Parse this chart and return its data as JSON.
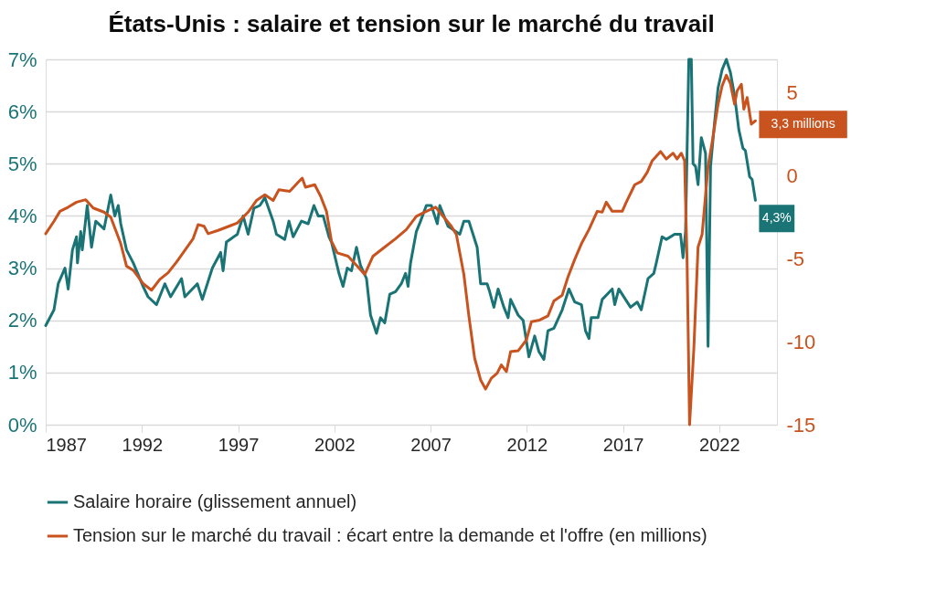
{
  "chart_data": {
    "type": "line",
    "title": "États-Unis : salaire et tension sur le marché du travail",
    "xlim": [
      1987,
      2025
    ],
    "xticks": [
      1987,
      1992,
      1997,
      2002,
      2007,
      2012,
      2017,
      2022
    ],
    "ylim": [
      0,
      7
    ],
    "yticks": [
      {
        "value": 0,
        "label": "0%"
      },
      {
        "value": 1,
        "label": "1%"
      },
      {
        "value": 2,
        "label": "2%"
      },
      {
        "value": 3,
        "label": "3%"
      },
      {
        "value": 4,
        "label": "4%"
      },
      {
        "value": 5,
        "label": "5%"
      },
      {
        "value": 6,
        "label": "6%"
      },
      {
        "value": 7,
        "label": "7%"
      }
    ],
    "y2lim": [
      -15,
      7
    ],
    "y2ticks": [
      -15,
      -10,
      -5,
      0,
      5
    ],
    "grid": "y",
    "legend": "bottom",
    "series": [
      {
        "name": "Salaire horaire (glissement annuel)",
        "color": "#1a7476",
        "x": [
          1987.0,
          1987.43,
          1987.65,
          1988.0,
          1988.17,
          1988.39,
          1988.6,
          1988.65,
          1988.82,
          1988.9,
          1989.16,
          1989.38,
          1989.6,
          1990.03,
          1990.38,
          1990.59,
          1990.77,
          1990.9,
          1991.2,
          1991.55,
          1992.06,
          1992.32,
          1992.76,
          1993.19,
          1993.49,
          1994.06,
          1994.23,
          1994.88,
          1995.14,
          1995.66,
          1996.09,
          1996.22,
          1996.39,
          1996.96,
          1997.26,
          1997.52,
          1997.82,
          1998.13,
          1998.39,
          1998.82,
          1998.99,
          1999.42,
          1999.64,
          1999.86,
          2000.29,
          2000.64,
          2000.94,
          2001.16,
          2001.42,
          2001.72,
          2001.85,
          2002.24,
          2002.45,
          2002.67,
          2002.89,
          2003.15,
          2003.36,
          2003.67,
          2003.88,
          2004.19,
          2004.4,
          2004.62,
          2004.88,
          2005.18,
          2005.48,
          2005.7,
          2005.83,
          2005.96,
          2006.26,
          2006.48,
          2006.78,
          2007.04,
          2007.35,
          2007.48,
          2007.91,
          2008.52,
          2008.73,
          2008.99,
          2009.42,
          2009.6,
          2009.94,
          2010.07,
          2010.29,
          2010.51,
          2010.81,
          2011.03,
          2011.16,
          2011.55,
          2011.81,
          2012.11,
          2012.41,
          2012.63,
          2012.89,
          2013.1,
          2013.41,
          2013.84,
          2014.19,
          2014.49,
          2014.84,
          2015.05,
          2015.23,
          2015.35,
          2015.7,
          2015.92,
          2016.44,
          2016.57,
          2016.78,
          2017.39,
          2017.74,
          2017.95,
          2018.3,
          2018.6,
          2018.73,
          2019.03,
          2019.25,
          2019.68,
          2019.99,
          2020.12,
          2020.25,
          2020.42,
          2020.55,
          2020.64,
          2020.77,
          2020.9,
          2021.07,
          2021.29,
          2021.42,
          2021.55,
          2021.76,
          2021.94,
          2022.15,
          2022.37,
          2022.58,
          2022.8,
          2023.02,
          2023.23,
          2023.36,
          2023.58,
          2023.71,
          2023.88
        ],
        "values": [
          1.9,
          2.2,
          2.7,
          3.0,
          2.6,
          3.35,
          3.6,
          3.1,
          3.7,
          3.35,
          4.2,
          3.4,
          3.9,
          3.75,
          4.4,
          4.0,
          4.2,
          3.85,
          3.35,
          3.1,
          2.65,
          2.45,
          2.3,
          2.7,
          2.45,
          2.8,
          2.45,
          2.7,
          2.4,
          3.0,
          3.3,
          2.95,
          3.5,
          3.65,
          4.0,
          3.65,
          4.15,
          4.2,
          4.35,
          3.9,
          3.65,
          3.55,
          3.9,
          3.6,
          3.9,
          3.85,
          4.2,
          4.0,
          4.0,
          3.6,
          3.5,
          2.9,
          2.65,
          3.0,
          2.95,
          3.4,
          3.05,
          2.8,
          2.1,
          1.75,
          2.05,
          1.95,
          2.5,
          2.55,
          2.7,
          2.9,
          2.65,
          3.1,
          3.7,
          3.9,
          4.2,
          4.2,
          3.85,
          4.2,
          3.8,
          3.65,
          3.9,
          3.9,
          3.4,
          2.7,
          2.7,
          2.55,
          2.25,
          2.6,
          2.25,
          2.05,
          2.4,
          2.1,
          2.0,
          1.3,
          1.7,
          1.4,
          1.25,
          1.8,
          1.85,
          2.2,
          2.6,
          2.35,
          2.3,
          1.8,
          1.65,
          2.05,
          2.05,
          2.4,
          2.6,
          2.3,
          2.6,
          2.25,
          2.35,
          2.2,
          2.8,
          2.9,
          3.1,
          3.6,
          3.55,
          3.65,
          3.65,
          3.2,
          3.7,
          7.0,
          7.0,
          5.0,
          4.95,
          4.6,
          5.5,
          5.2,
          1.5,
          4.95,
          5.8,
          6.45,
          6.8,
          7.0,
          6.75,
          6.3,
          5.65,
          5.3,
          5.25,
          4.75,
          4.7,
          4.3
        ],
        "value_labels": [
          null,
          null,
          null,
          null,
          null,
          null,
          null,
          null,
          null,
          null,
          null,
          null,
          null,
          null,
          null,
          null,
          null,
          null,
          null,
          null,
          null,
          null,
          null,
          null,
          null,
          null,
          null,
          null,
          null,
          null,
          null,
          null,
          null,
          null,
          null,
          null,
          null,
          null,
          null,
          null,
          null,
          null,
          null,
          null,
          null,
          null,
          null,
          null,
          null,
          null,
          null,
          null,
          null,
          null,
          null,
          null,
          null,
          null,
          null,
          null,
          null,
          null,
          null,
          null,
          null,
          null,
          null,
          null,
          null,
          null,
          null,
          null,
          null,
          null,
          null,
          null,
          null,
          null,
          null,
          null,
          null,
          null,
          null,
          null,
          null,
          null,
          null,
          null,
          null,
          null,
          null,
          null,
          null,
          null,
          null,
          null,
          null,
          null,
          null,
          null,
          null,
          null,
          null,
          null,
          null,
          null,
          null,
          null,
          null,
          null,
          null,
          null,
          null,
          null,
          null,
          null,
          null,
          null,
          null,
          null,
          null,
          null,
          null,
          null,
          null,
          null,
          null,
          null,
          null,
          null,
          null,
          null,
          null,
          null,
          null,
          null,
          null,
          null,
          null,
          "4,3%"
        ]
      },
      {
        "name": "Tension sur le marché du travail : écart entre la demande et l'offre (en millions)",
        "color": "#c9531f",
        "axis": "y2",
        "x": [
          1987.0,
          1987.43,
          1987.74,
          1988.17,
          1988.6,
          1989.08,
          1989.47,
          1990.03,
          1990.38,
          1990.9,
          1991.2,
          1991.55,
          1992.06,
          1992.5,
          1992.93,
          1993.36,
          1993.8,
          1994.23,
          1994.66,
          1994.92,
          1995.23,
          1995.44,
          1995.96,
          1996.52,
          1996.96,
          1997.52,
          1997.95,
          1998.39,
          1998.82,
          1999.12,
          1999.68,
          2000.12,
          2000.33,
          2000.5,
          2000.98,
          2001.29,
          2001.59,
          2001.85,
          2002.15,
          2002.71,
          2003.15,
          2003.58,
          2004.01,
          2004.62,
          2005.18,
          2005.74,
          2006.26,
          2006.78,
          2007.26,
          2007.65,
          2008.08,
          2008.34,
          2008.73,
          2008.99,
          2009.29,
          2009.6,
          2009.86,
          2010.16,
          2010.46,
          2010.68,
          2010.94,
          2011.16,
          2011.55,
          2011.98,
          2012.24,
          2012.67,
          2013.1,
          2013.41,
          2013.84,
          2014.14,
          2014.49,
          2014.84,
          2015.23,
          2015.66,
          2015.92,
          2016.13,
          2016.44,
          2016.96,
          2017.17,
          2017.61,
          2017.95,
          2018.26,
          2018.52,
          2018.95,
          2019.25,
          2019.6,
          2019.81,
          2020.03,
          2020.2,
          2020.33,
          2020.46,
          2020.68,
          2020.9,
          2021.11,
          2021.42,
          2021.63,
          2021.94,
          2022.15,
          2022.37,
          2022.58,
          2022.8,
          2022.93,
          2023.15,
          2023.28,
          2023.45,
          2023.67,
          2023.88
        ],
        "values": [
          -3.5,
          -2.75,
          -2.15,
          -1.9,
          -1.6,
          -1.45,
          -1.95,
          -2.2,
          -2.5,
          -4.1,
          -5.45,
          -5.7,
          -6.5,
          -6.9,
          -6.25,
          -5.85,
          -5.2,
          -4.5,
          -3.8,
          -2.95,
          -3.05,
          -3.5,
          -3.3,
          -3.05,
          -2.85,
          -2.2,
          -1.5,
          -1.15,
          -1.5,
          -0.85,
          -0.95,
          -0.4,
          -0.15,
          -0.7,
          -0.55,
          -1.25,
          -2.15,
          -3.95,
          -4.65,
          -4.85,
          -5.4,
          -5.95,
          -4.85,
          -4.3,
          -3.8,
          -3.25,
          -2.45,
          -2.15,
          -1.9,
          -2.45,
          -3.05,
          -3.55,
          -5.95,
          -8.45,
          -11.0,
          -12.3,
          -12.85,
          -12.2,
          -11.9,
          -11.4,
          -11.8,
          -10.6,
          -10.55,
          -9.9,
          -8.8,
          -8.7,
          -8.45,
          -7.55,
          -7.2,
          -6.1,
          -5.05,
          -4.1,
          -3.25,
          -2.15,
          -2.2,
          -1.6,
          -2.15,
          -2.15,
          -1.6,
          -0.55,
          -0.35,
          0.2,
          0.9,
          1.45,
          1.0,
          1.35,
          1.0,
          1.35,
          0.9,
          -5.2,
          -15.0,
          -10.45,
          -4.3,
          -3.55,
          0.55,
          2.0,
          4.3,
          5.4,
          6.05,
          5.55,
          4.3,
          5.1,
          5.5,
          4.0,
          4.7,
          3.1,
          3.3
        ],
        "value_labels": [
          null,
          null,
          null,
          null,
          null,
          null,
          null,
          null,
          null,
          null,
          null,
          null,
          null,
          null,
          null,
          null,
          null,
          null,
          null,
          null,
          null,
          null,
          null,
          null,
          null,
          null,
          null,
          null,
          null,
          null,
          null,
          null,
          null,
          null,
          null,
          null,
          null,
          null,
          null,
          null,
          null,
          null,
          null,
          null,
          null,
          null,
          null,
          null,
          null,
          null,
          null,
          null,
          null,
          null,
          null,
          null,
          null,
          null,
          null,
          null,
          null,
          null,
          null,
          null,
          null,
          null,
          null,
          null,
          null,
          null,
          null,
          null,
          null,
          null,
          null,
          null,
          null,
          null,
          null,
          null,
          null,
          null,
          null,
          null,
          null,
          null,
          null,
          null,
          null,
          null,
          null,
          null,
          null,
          null,
          null,
          null,
          null,
          null,
          null,
          null,
          null,
          null,
          null,
          null,
          null,
          null,
          "3,3 millions"
        ]
      }
    ]
  }
}
